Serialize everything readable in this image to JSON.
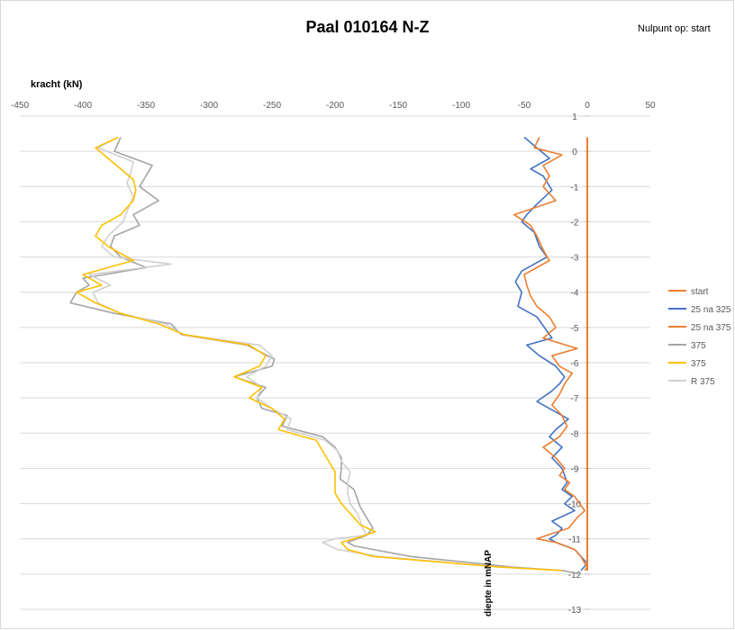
{
  "chart_data": {
    "type": "line",
    "title": "Paal 010164 N-Z",
    "note": "Nulpunt  op: start",
    "xlabel": "kracht (kN)",
    "ylabel": "diepte in mNAP",
    "xlim": [
      -450,
      50
    ],
    "ylim": [
      -13,
      1
    ],
    "x_ticks": [
      "-450",
      "-400",
      "-350",
      "-300",
      "-250",
      "-200",
      "-150",
      "-100",
      "-50",
      "0",
      "50"
    ],
    "y_ticks": [
      "1",
      "0",
      "-1",
      "-2",
      "-3",
      "-4",
      "-5",
      "-6",
      "-7",
      "-8",
      "-9",
      "-10",
      "-11",
      "-12",
      "-13"
    ],
    "grid": true,
    "legend_position": "right",
    "series": [
      {
        "name": "start",
        "color": "#ed7d31",
        "x": [
          0,
          0
        ],
        "y": [
          0.4,
          -11.9
        ]
      },
      {
        "name": "25 na 325",
        "color": "#4472c4",
        "x": [
          -50,
          -40,
          -30,
          -45,
          -35,
          -28,
          -40,
          -48,
          -52,
          -42,
          -38,
          -32,
          -52,
          -57,
          -52,
          -55,
          -40,
          -34,
          -28,
          -48,
          -38,
          -25,
          -18,
          -22,
          -28,
          -40,
          -25,
          -15,
          -25,
          -30,
          -20,
          -28,
          -20,
          -18,
          -16,
          -20,
          -12,
          -18,
          -10,
          -28,
          -20,
          -25,
          -30,
          -25,
          -10,
          -5,
          0,
          -5
        ],
        "y": [
          0.4,
          0.1,
          -0.2,
          -0.5,
          -0.7,
          -1.1,
          -1.5,
          -1.8,
          -2.0,
          -2.3,
          -2.7,
          -3.0,
          -3.4,
          -3.7,
          -4.0,
          -4.4,
          -4.7,
          -5.0,
          -5.3,
          -5.5,
          -5.8,
          -6.1,
          -6.4,
          -6.6,
          -6.8,
          -7.1,
          -7.4,
          -7.6,
          -7.9,
          -8.1,
          -8.4,
          -8.7,
          -9.0,
          -9.2,
          -9.4,
          -9.6,
          -9.8,
          -10.0,
          -10.2,
          -10.5,
          -10.7,
          -10.9,
          -11.0,
          -11.1,
          -11.3,
          -11.5,
          -11.7,
          -11.9
        ]
      },
      {
        "name": "25 na 375",
        "color": "#ed7d31",
        "x": [
          -38,
          -42,
          -20,
          -35,
          -30,
          -35,
          -25,
          -58,
          -45,
          -40,
          -35,
          -30,
          -50,
          -48,
          -45,
          -40,
          -30,
          -25,
          -35,
          -8,
          -28,
          -22,
          -12,
          -18,
          -22,
          -28,
          -20,
          -16,
          -22,
          -35,
          -25,
          -18,
          -22,
          -14,
          -18,
          -10,
          -6,
          -2,
          -8,
          -15,
          -32,
          -40,
          -25,
          -10,
          -5,
          -2,
          0,
          -2
        ],
        "y": [
          0.4,
          0.1,
          -0.1,
          -0.4,
          -0.7,
          -1.0,
          -1.4,
          -1.8,
          -2.1,
          -2.4,
          -2.8,
          -3.1,
          -3.5,
          -3.8,
          -4.1,
          -4.4,
          -4.7,
          -5.0,
          -5.3,
          -5.6,
          -5.8,
          -6.1,
          -6.3,
          -6.6,
          -6.9,
          -7.2,
          -7.5,
          -7.8,
          -8.1,
          -8.4,
          -8.7,
          -9.0,
          -9.2,
          -9.4,
          -9.6,
          -9.8,
          -10.0,
          -10.2,
          -10.4,
          -10.7,
          -10.9,
          -11.0,
          -11.1,
          -11.3,
          -11.5,
          -11.7,
          -11.8,
          -11.9
        ]
      },
      {
        "name": "375",
        "color": "#a5a5a5",
        "x": [
          -370,
          -375,
          -345,
          -350,
          -355,
          -340,
          -360,
          -355,
          -375,
          -378,
          -370,
          -350,
          -400,
          -395,
          -405,
          -410,
          -375,
          -330,
          -322,
          -270,
          -248,
          -250,
          -280,
          -255,
          -262,
          -258,
          -238,
          -242,
          -210,
          -200,
          -195,
          -195,
          -196,
          -185,
          -182,
          -180,
          -175,
          -170,
          -175,
          -190,
          -185,
          -170,
          -140,
          -60,
          -20,
          -5
        ],
        "y": [
          0.4,
          0.0,
          -0.4,
          -0.7,
          -1.0,
          -1.4,
          -1.8,
          -2.1,
          -2.4,
          -2.7,
          -3.0,
          -3.3,
          -3.6,
          -3.8,
          -4.0,
          -4.3,
          -4.6,
          -4.9,
          -5.2,
          -5.5,
          -5.9,
          -6.1,
          -6.4,
          -6.7,
          -7.0,
          -7.3,
          -7.5,
          -7.8,
          -8.1,
          -8.4,
          -8.7,
          -9.0,
          -9.3,
          -9.6,
          -9.9,
          -10.1,
          -10.4,
          -10.7,
          -10.9,
          -11.1,
          -11.2,
          -11.3,
          -11.5,
          -11.8,
          -11.9,
          -12.0
        ]
      },
      {
        "name": "375",
        "color": "#ffc000",
        "x": [
          -372,
          -390,
          -380,
          -370,
          -360,
          -358,
          -360,
          -370,
          -385,
          -390,
          -380,
          -360,
          -400,
          -385,
          -405,
          -390,
          -370,
          -340,
          -320,
          -268,
          -255,
          -260,
          -280,
          -258,
          -268,
          -250,
          -240,
          -245,
          -215,
          -210,
          -205,
          -200,
          -200,
          -200,
          -195,
          -190,
          -185,
          -180,
          -168,
          -185,
          -195,
          -190,
          -170,
          -70,
          -20
        ],
        "y": [
          0.4,
          0.1,
          -0.2,
          -0.5,
          -0.8,
          -1.1,
          -1.4,
          -1.8,
          -2.1,
          -2.4,
          -2.7,
          -3.1,
          -3.5,
          -3.8,
          -4.0,
          -4.3,
          -4.6,
          -4.9,
          -5.2,
          -5.5,
          -5.8,
          -6.1,
          -6.4,
          -6.7,
          -7.0,
          -7.3,
          -7.6,
          -7.9,
          -8.2,
          -8.5,
          -8.8,
          -9.1,
          -9.4,
          -9.7,
          -10.0,
          -10.2,
          -10.4,
          -10.6,
          -10.8,
          -11.0,
          -11.1,
          -11.3,
          -11.5,
          -11.8,
          -11.9
        ]
      },
      {
        "name": "R 375",
        "color": "#d0d0d0",
        "x": [
          -372,
          -388,
          -360,
          -362,
          -365,
          -360,
          -365,
          -368,
          -380,
          -385,
          -375,
          -330,
          -395,
          -378,
          -392,
          -388,
          -370,
          -335,
          -320,
          -260,
          -250,
          -255,
          -270,
          -258,
          -262,
          -250,
          -235,
          -238,
          -208,
          -198,
          -195,
          -188,
          -190,
          -190,
          -188,
          -182,
          -180,
          -178,
          -175,
          -200,
          -210,
          -198,
          -165,
          -70,
          -20
        ],
        "y": [
          0.4,
          0.1,
          -0.3,
          -0.6,
          -0.9,
          -1.3,
          -1.7,
          -2.0,
          -2.4,
          -2.7,
          -3.0,
          -3.2,
          -3.5,
          -3.8,
          -4.0,
          -4.3,
          -4.6,
          -4.9,
          -5.2,
          -5.5,
          -5.8,
          -6.1,
          -6.4,
          -6.7,
          -7.0,
          -7.3,
          -7.6,
          -7.9,
          -8.2,
          -8.5,
          -8.8,
          -9.1,
          -9.4,
          -9.7,
          -10.0,
          -10.3,
          -10.5,
          -10.7,
          -10.9,
          -11.0,
          -11.1,
          -11.3,
          -11.5,
          -11.8,
          -11.9
        ]
      }
    ]
  }
}
